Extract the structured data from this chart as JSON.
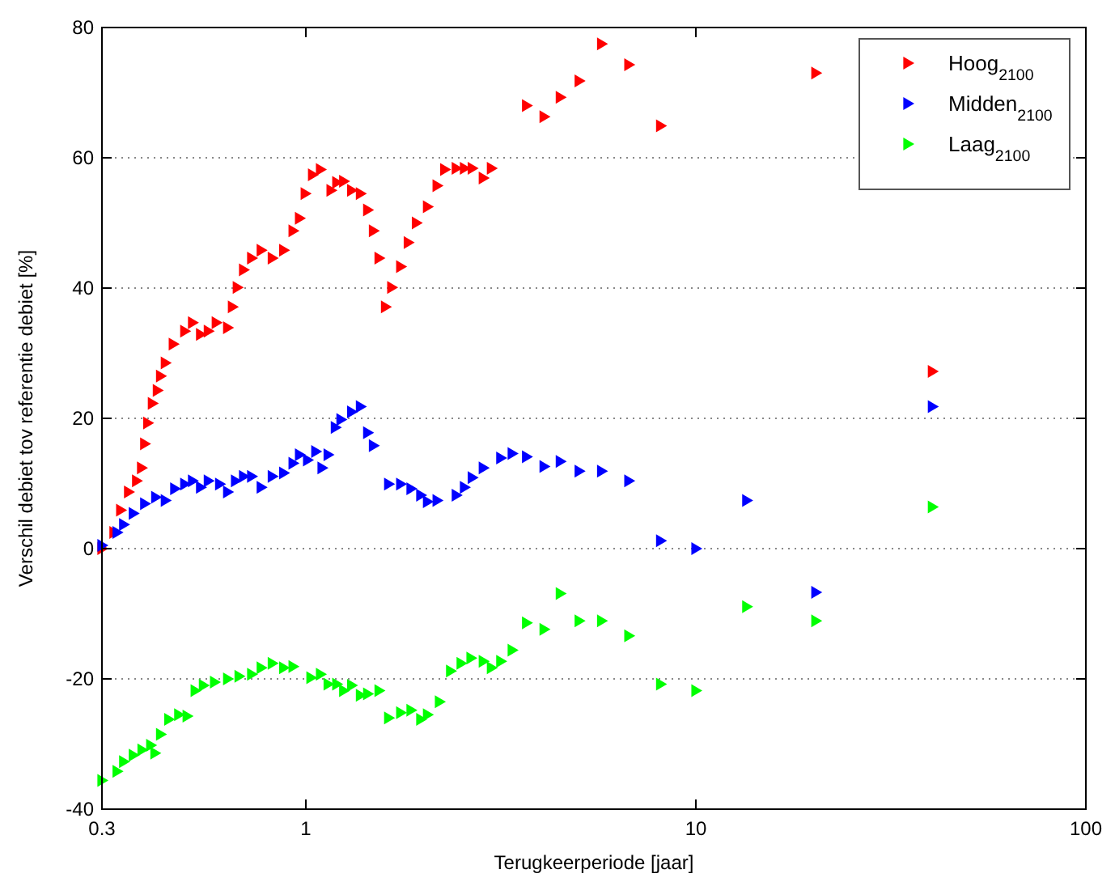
{
  "chart_data": {
    "type": "scatter",
    "xlabel": "Terugkeerperiode [jaar]",
    "ylabel": "Verschil debiet tov referentie debiet [%]",
    "log": "x",
    "xlim": [
      0.3,
      100
    ],
    "xticks": [
      0.3,
      1,
      10,
      100
    ],
    "ylim": [
      -40,
      80
    ],
    "yticks": [
      -40,
      -20,
      0,
      20,
      40,
      60,
      80
    ],
    "grid": "y",
    "legend": "top right",
    "marker": "triangle",
    "series": [
      {
        "name": "Hoog$_{2100}$",
        "color": "#ff0000",
        "x": [
          0.3,
          0.322,
          0.335,
          0.351,
          0.368,
          0.379,
          0.386,
          0.393,
          0.404,
          0.416,
          0.424,
          0.436,
          0.457,
          0.489,
          0.512,
          0.537,
          0.562,
          0.589,
          0.63,
          0.648,
          0.667,
          0.692,
          0.726,
          0.768,
          0.82,
          0.877,
          0.927,
          0.963,
          0.996,
          1.04,
          1.09,
          1.16,
          1.2,
          1.25,
          1.31,
          1.38,
          1.44,
          1.49,
          1.54,
          1.6,
          1.66,
          1.75,
          1.83,
          1.92,
          2.05,
          2.17,
          2.27,
          2.43,
          2.55,
          2.67,
          2.85,
          2.99,
          3.68,
          4.08,
          4.49,
          5.02,
          5.73,
          6.73,
          8.12,
          20.3,
          40.4
        ],
        "values": [
          0,
          2.5,
          5.9,
          8.7,
          10.4,
          12.4,
          16.1,
          19.3,
          22.3,
          24.3,
          26.5,
          28.5,
          31.4,
          33.4,
          34.7,
          32.9,
          33.4,
          34.7,
          33.9,
          37.1,
          40.1,
          42.8,
          44.6,
          45.8,
          44.6,
          45.8,
          48.8,
          50.7,
          54.5,
          57.4,
          58.2,
          55,
          56.2,
          56.4,
          55,
          54.5,
          52,
          48.8,
          44.6,
          37.1,
          40.1,
          43.3,
          47,
          50,
          52.5,
          55.7,
          58.2,
          58.4,
          58.4,
          58.4,
          56.9,
          58.4,
          68,
          66.3,
          69.3,
          71.8,
          77.5,
          74.3,
          64.9,
          73,
          27.2
        ]
      },
      {
        "name": "Midden$_{2100}$",
        "color": "#0000ff",
        "x": [
          0.3,
          0.328,
          0.341,
          0.361,
          0.386,
          0.412,
          0.436,
          0.461,
          0.489,
          0.512,
          0.537,
          0.562,
          0.601,
          0.63,
          0.66,
          0.692,
          0.726,
          0.768,
          0.82,
          0.877,
          0.927,
          0.963,
          1.01,
          1.06,
          1.1,
          1.14,
          1.19,
          1.23,
          1.31,
          1.38,
          1.44,
          1.49,
          1.63,
          1.75,
          1.86,
          1.97,
          2.05,
          2.17,
          2.43,
          2.55,
          2.67,
          2.85,
          3.16,
          3.38,
          3.68,
          4.08,
          4.49,
          5.02,
          5.73,
          6.73,
          8.12,
          10,
          13.5,
          20.3,
          40.4
        ],
        "values": [
          0.5,
          2.5,
          3.7,
          5.4,
          6.9,
          7.9,
          7.4,
          9.2,
          9.9,
          10.4,
          9.4,
          10.4,
          9.9,
          8.7,
          10.4,
          11.1,
          11.1,
          9.4,
          11.1,
          11.6,
          13.1,
          14.4,
          13.6,
          14.9,
          12.4,
          14.4,
          18.6,
          19.8,
          21,
          21.8,
          17.8,
          15.8,
          9.9,
          9.9,
          9.2,
          8.2,
          7.2,
          7.4,
          8.2,
          9.4,
          10.9,
          12.4,
          13.9,
          14.6,
          14.1,
          12.6,
          13.4,
          11.9,
          11.9,
          10.4,
          1.2,
          0,
          7.4,
          -6.7,
          21.8
        ]
      },
      {
        "name": "Laag$_{2100}$",
        "color": "#00ff00",
        "x": [
          0.3,
          0.328,
          0.341,
          0.361,
          0.38,
          0.4,
          0.41,
          0.424,
          0.445,
          0.472,
          0.496,
          0.52,
          0.546,
          0.583,
          0.63,
          0.674,
          0.726,
          0.768,
          0.82,
          0.877,
          0.927,
          1.03,
          1.09,
          1.14,
          1.2,
          1.25,
          1.31,
          1.38,
          1.44,
          1.54,
          1.63,
          1.75,
          1.86,
          1.97,
          2.05,
          2.2,
          2.35,
          2.5,
          2.65,
          2.85,
          2.99,
          3.16,
          3.38,
          3.68,
          4.08,
          4.49,
          5.02,
          5.73,
          6.73,
          8.12,
          10,
          13.5,
          20.3,
          40.4
        ],
        "values": [
          -35.6,
          -34.2,
          -32.7,
          -31.7,
          -30.9,
          -30.2,
          -31.4,
          -28.5,
          -26.2,
          -25.5,
          -25.7,
          -21.8,
          -21,
          -20.5,
          -20,
          -19.6,
          -19.3,
          -18.3,
          -17.6,
          -18.3,
          -18.1,
          -19.8,
          -19.3,
          -20.8,
          -20.8,
          -21.8,
          -21,
          -22.5,
          -22.3,
          -21.8,
          -26,
          -25.2,
          -24.8,
          -26.2,
          -25.5,
          -23.5,
          -18.8,
          -17.6,
          -16.8,
          -17.3,
          -18.3,
          -17.3,
          -15.6,
          -11.4,
          -12.4,
          -6.9,
          -11.1,
          -11.1,
          -13.4,
          -20.8,
          -21.8,
          -8.9,
          -11.1,
          6.4
        ]
      }
    ]
  }
}
